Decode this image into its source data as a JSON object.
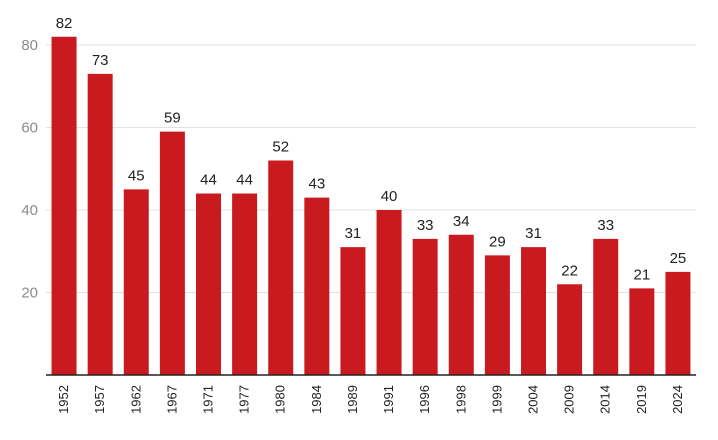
{
  "chart_data": {
    "type": "bar",
    "title": "",
    "xlabel": "",
    "ylabel": "",
    "categories": [
      "1952",
      "1957",
      "1962",
      "1967",
      "1971",
      "1977",
      "1980",
      "1984",
      "1989",
      "1991",
      "1996",
      "1998",
      "1999",
      "2004",
      "2009",
      "2014",
      "2019",
      "2024"
    ],
    "values": [
      82,
      73,
      45,
      59,
      44,
      44,
      52,
      43,
      31,
      40,
      33,
      34,
      29,
      31,
      22,
      33,
      21,
      25
    ],
    "ylim": [
      0,
      80
    ],
    "yticks": [
      20,
      40,
      60,
      80
    ],
    "grid": true,
    "bar_color": "#c91b1f",
    "show_data_labels": true
  }
}
